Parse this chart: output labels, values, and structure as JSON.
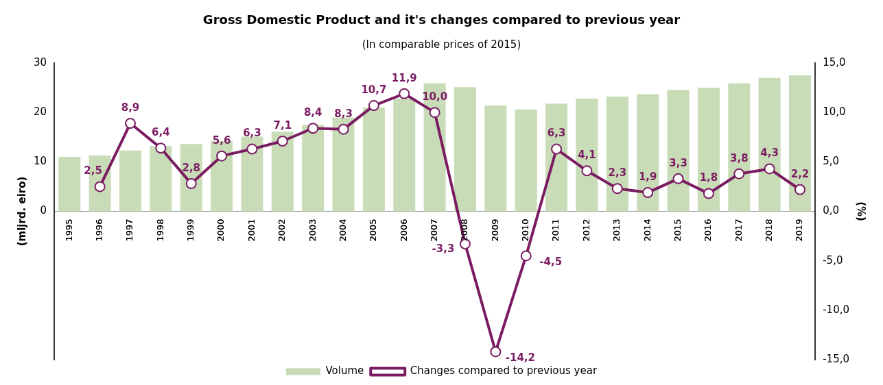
{
  "chart_data": {
    "type": "bar",
    "title": "Gross Domestic Product and it's changes compared to previous year",
    "subtitle": "(In comparable prices of 2015)",
    "ylabel": "(mljrd. eiro)",
    "y2label": "(%)",
    "categories": [
      "1995",
      "1996",
      "1997",
      "1998",
      "1999",
      "2000",
      "2001",
      "2002",
      "2003",
      "2004",
      "2005",
      "2006",
      "2007",
      "2008",
      "2009",
      "2010",
      "2011",
      "2012",
      "2013",
      "2014",
      "2015",
      "2016",
      "2017",
      "2018",
      "2019"
    ],
    "series": [
      {
        "name": "Volume",
        "type": "bar",
        "color": "#c9dcb8",
        "values": [
          11.0,
          11.3,
          12.3,
          13.2,
          13.6,
          14.2,
          15.1,
          16.1,
          17.5,
          19.0,
          21.0,
          22.8,
          25.9,
          25.1,
          21.4,
          20.6,
          21.8,
          22.8,
          23.2,
          23.7,
          24.6,
          25.0,
          25.9,
          27.0,
          27.5
        ]
      },
      {
        "name": "Changes compared to previous year",
        "type": "line",
        "axis": "y2",
        "color": "#7b1c62",
        "values": [
          null,
          2.5,
          8.9,
          6.4,
          2.8,
          5.6,
          6.3,
          7.1,
          8.4,
          8.3,
          10.7,
          11.9,
          10.0,
          -3.3,
          -14.2,
          -4.5,
          6.3,
          4.1,
          2.3,
          1.9,
          3.3,
          1.8,
          3.8,
          4.3,
          2.2
        ],
        "value_labels": [
          null,
          "2,5",
          "8,9",
          "6,4",
          "2,8",
          "5,6",
          "6,3",
          "7,1",
          "8,4",
          "8,3",
          "10,7",
          "11,9",
          "10,0",
          "-3,3",
          "-14,2",
          "-4,5",
          "6,3",
          "4,1",
          "2,3",
          "1,9",
          "3,3",
          "1,8",
          "3,8",
          "4,3",
          "2,2"
        ]
      }
    ],
    "ylim": [
      -30,
      30
    ],
    "yticks": [
      0,
      10,
      20,
      30
    ],
    "y2lim": [
      -15,
      15
    ],
    "y2ticks": [
      {
        "value": 15,
        "label": "15,0"
      },
      {
        "value": 10,
        "label": "10,0"
      },
      {
        "value": 5,
        "label": "5,0"
      },
      {
        "value": 0,
        "label": "0,0"
      },
      {
        "value": -5,
        "label": "-5,0"
      },
      {
        "value": -10,
        "label": "-10,0"
      },
      {
        "value": -15,
        "label": "-15,0"
      }
    ],
    "marker": "circle",
    "grid": false,
    "legend": "bottom"
  }
}
